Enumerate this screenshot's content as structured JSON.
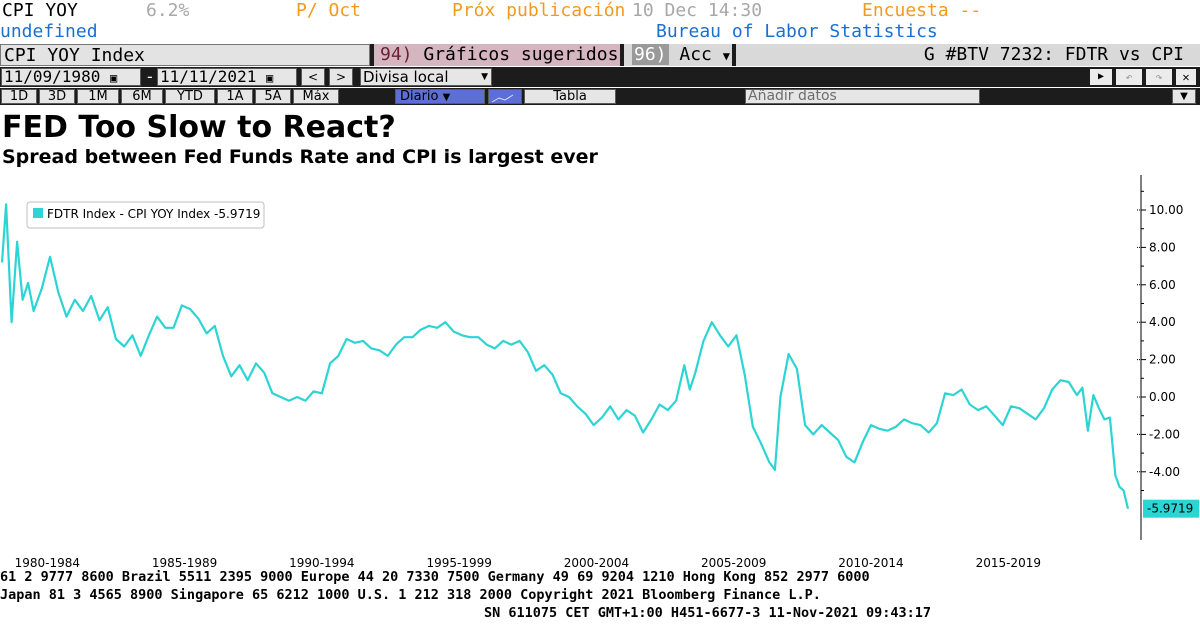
{
  "header": {
    "ticker": "CPI YOY",
    "value": "6.2%",
    "period": "P/ Oct",
    "next_release_label": "Próx publicación",
    "next_release_value": "10 Dec 14:30",
    "survey": "Encuesta --",
    "undefined_label": "undefined",
    "source": "Bureau of Labor Statistics",
    "colors": {
      "label": "#ff9900",
      "value": "#b0b0b0",
      "accent": "#1c6fd1"
    }
  },
  "toolbar": {
    "security": "CPI YOY Index",
    "suggested_num": "94)",
    "suggested": "Gráficos sugeridos",
    "actions_num": "96)",
    "actions": "Acc",
    "function_title": "G #BTV 7232: FDTR vs CPI",
    "start_date": "11/09/1980",
    "end_date": "11/11/2021",
    "currency": "Divisa local",
    "periods": [
      "1D",
      "3D",
      "1M",
      "6M",
      "YTD",
      "1A",
      "5A",
      "Máx"
    ],
    "frequency": "Diario",
    "table": "Tabla",
    "add_data": "Añadir datos",
    "dash": "-"
  },
  "title": "FED Too Slow to React?",
  "subtitle": "Spread between Fed Funds Rate and CPI is largest ever",
  "chart_data": {
    "type": "line",
    "series": [
      {
        "name": "FDTR Index - CPI YOY Index",
        "last_label": "-5.9719",
        "color": "#2dd4d4",
        "x": [
          1980.85,
          1981.0,
          1981.2,
          1981.4,
          1981.6,
          1981.8,
          1982.0,
          1982.3,
          1982.6,
          1982.9,
          1983.2,
          1983.5,
          1983.8,
          1984.1,
          1984.4,
          1984.7,
          1985.0,
          1985.3,
          1985.6,
          1985.9,
          1986.2,
          1986.5,
          1986.8,
          1987.1,
          1987.4,
          1987.7,
          1988.0,
          1988.3,
          1988.6,
          1988.9,
          1989.2,
          1989.5,
          1989.8,
          1990.1,
          1990.4,
          1990.7,
          1991.0,
          1991.3,
          1991.6,
          1991.9,
          1992.2,
          1992.5,
          1992.8,
          1993.1,
          1993.4,
          1993.7,
          1994.0,
          1994.3,
          1994.6,
          1994.9,
          1995.2,
          1995.5,
          1995.8,
          1996.1,
          1996.4,
          1996.7,
          1997.0,
          1997.3,
          1997.6,
          1997.9,
          1998.2,
          1998.5,
          1998.8,
          1999.1,
          1999.4,
          1999.7,
          2000.0,
          2000.3,
          2000.6,
          2000.9,
          2001.2,
          2001.5,
          2001.8,
          2002.1,
          2002.4,
          2002.7,
          2003.0,
          2003.3,
          2003.6,
          2003.9,
          2004.2,
          2004.5,
          2004.8,
          2005.1,
          2005.4,
          2005.7,
          2005.9,
          2006.1,
          2006.4,
          2006.7,
          2007.0,
          2007.3,
          2007.6,
          2007.9,
          2008.2,
          2008.5,
          2008.8,
          2009.0,
          2009.2,
          2009.5,
          2009.8,
          2010.1,
          2010.4,
          2010.7,
          2011.0,
          2011.3,
          2011.6,
          2011.9,
          2012.2,
          2012.5,
          2012.8,
          2013.1,
          2013.4,
          2013.7,
          2014.0,
          2014.3,
          2014.6,
          2014.9,
          2015.2,
          2015.5,
          2015.8,
          2016.1,
          2016.4,
          2016.7,
          2017.0,
          2017.3,
          2017.6,
          2017.9,
          2018.2,
          2018.5,
          2018.8,
          2019.1,
          2019.4,
          2019.7,
          2020.0,
          2020.2,
          2020.4,
          2020.6,
          2020.8,
          2021.0,
          2021.2,
          2021.4,
          2021.55,
          2021.7,
          2021.86
        ],
        "y": [
          7.2,
          10.3,
          4.0,
          8.3,
          5.2,
          6.1,
          4.6,
          5.8,
          7.5,
          5.6,
          4.3,
          5.2,
          4.6,
          5.4,
          4.1,
          4.8,
          3.1,
          2.7,
          3.3,
          2.2,
          3.3,
          4.3,
          3.7,
          3.7,
          4.9,
          4.7,
          4.2,
          3.4,
          3.8,
          2.2,
          1.1,
          1.7,
          0.9,
          1.8,
          1.3,
          0.2,
          0.0,
          -0.2,
          0.0,
          -0.2,
          0.3,
          0.2,
          1.8,
          2.2,
          3.1,
          2.9,
          3.0,
          2.6,
          2.5,
          2.2,
          2.8,
          3.2,
          3.2,
          3.6,
          3.8,
          3.7,
          4.0,
          3.5,
          3.3,
          3.2,
          3.2,
          2.8,
          2.6,
          3.0,
          2.8,
          3.0,
          2.4,
          1.4,
          1.7,
          1.2,
          0.2,
          0.0,
          -0.5,
          -0.9,
          -1.5,
          -1.1,
          -0.5,
          -1.2,
          -0.7,
          -1.0,
          -1.9,
          -1.2,
          -0.4,
          -0.7,
          -0.2,
          1.7,
          0.4,
          1.3,
          3.0,
          4.0,
          3.3,
          2.7,
          3.3,
          1.2,
          -1.6,
          -2.5,
          -3.5,
          -3.9,
          0.0,
          2.3,
          1.5,
          -1.5,
          -2.0,
          -1.5,
          -1.9,
          -2.3,
          -3.2,
          -3.5,
          -2.4,
          -1.5,
          -1.7,
          -1.8,
          -1.6,
          -1.2,
          -1.4,
          -1.5,
          -1.9,
          -1.4,
          0.2,
          0.1,
          0.4,
          -0.4,
          -0.7,
          -0.5,
          -1.0,
          -1.5,
          -0.5,
          -0.6,
          -0.9,
          -1.2,
          -0.6,
          0.4,
          0.9,
          0.8,
          0.1,
          0.5,
          -1.8,
          0.1,
          -0.6,
          -1.2,
          -1.1,
          -4.2,
          -4.8,
          -5.0,
          -5.9719
        ]
      }
    ],
    "ylim": [
      -7,
      11
    ],
    "yticks": [
      "10.00",
      "8.00",
      "6.00",
      "4.00",
      "2.00",
      "0.00",
      "-2.00",
      "-4.00"
    ],
    "ytick_values": [
      10,
      8,
      6,
      4,
      2,
      0,
      -2,
      -4
    ],
    "xlim": [
      1980.85,
      2021.86
    ],
    "xticks": [
      "1980-1984",
      "1985-1989",
      "1990-1994",
      "1995-1999",
      "2000-2004",
      "2005-2009",
      "2010-2014",
      "2015-2019"
    ],
    "xtick_values": [
      1982.5,
      1987.5,
      1992.5,
      1997.5,
      2002.5,
      2007.5,
      2012.5,
      2017.5
    ],
    "grid": false,
    "legend_position": "top-left",
    "axis_side": "right"
  },
  "footer": {
    "line1": "61 2 9777 8600 Brazil 5511 2395 9000 Europe 44 20 7330 7500 Germany 49 69 9204 1210 Hong Kong 852 2977 6000",
    "line2": "Japan 81 3 4565 8900        Singapore 65 6212 1000       U.S. 1 212 318 2000          Copyright 2021 Bloomberg Finance L.P.",
    "line3": "SN 611075 CET  GMT+1:00 H451-6677-3 11-Nov-2021 09:43:17"
  }
}
